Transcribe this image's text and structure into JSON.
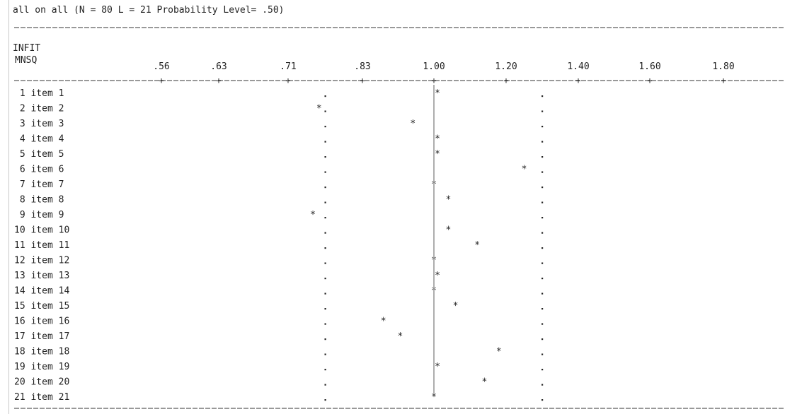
{
  "chart_data": {
    "type": "scatter",
    "title": "all on all (N = 80 L = 21 Probability Level= .50)",
    "ylabel_line1": "INFIT",
    "ylabel_line2": "MNSQ",
    "tick_labels": [
      ".56",
      ".63",
      ".71",
      ".83",
      "1.00",
      "1.20",
      "1.40",
      "1.60",
      "1.80"
    ],
    "tick_values": [
      0.56,
      0.63,
      0.71,
      0.83,
      1.0,
      1.2,
      1.4,
      1.6,
      1.8
    ],
    "reference_value": 1.0,
    "lower_bound": 0.77,
    "upper_bound": 1.3,
    "marker": "*",
    "items": [
      {
        "label": " 1 item 1",
        "infit": 1.01
      },
      {
        "label": " 2 item 2",
        "infit": 0.76
      },
      {
        "label": " 3 item 3",
        "infit": 0.95
      },
      {
        "label": " 4 item 4",
        "infit": 1.01
      },
      {
        "label": " 5 item 5",
        "infit": 1.01
      },
      {
        "label": " 6 item 6",
        "infit": 1.25
      },
      {
        "label": " 7 item 7",
        "infit": 1.0
      },
      {
        "label": " 8 item 8",
        "infit": 1.04
      },
      {
        "label": " 9 item 9",
        "infit": 0.75
      },
      {
        "label": "10 item 10",
        "infit": 1.04
      },
      {
        "label": "11 item 11",
        "infit": 1.12
      },
      {
        "label": "12 item 12",
        "infit": 1.0
      },
      {
        "label": "13 item 13",
        "infit": 1.01
      },
      {
        "label": "14 item 14",
        "infit": 1.0
      },
      {
        "label": "15 item 15",
        "infit": 1.06
      },
      {
        "label": "16 item 16",
        "infit": 0.88
      },
      {
        "label": "17 item 17",
        "infit": 0.92
      },
      {
        "label": "18 item 18",
        "infit": 1.18
      },
      {
        "label": "19 item 19",
        "infit": 1.01
      },
      {
        "label": "20 item 20",
        "infit": 1.14
      },
      {
        "label": "21 item 21",
        "infit": 1.0
      }
    ]
  }
}
